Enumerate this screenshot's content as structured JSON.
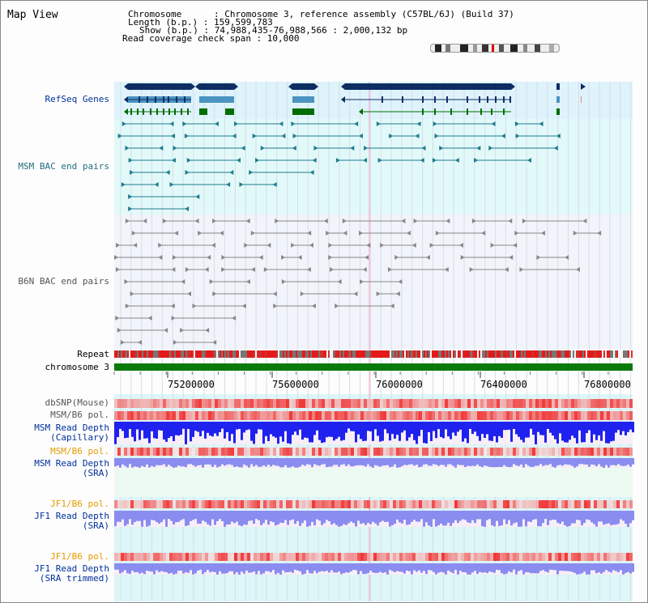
{
  "header": {
    "title": "Map View",
    "info_lines": [
      "Chromosome      : Chromosome 3, reference assembly (C57BL/6J) (Build 37)",
      "Length (b.p.) : 159,599,783",
      "Show (b.p.) : 74,988,435-76,988,566 : 2,000,132 bp",
      "Read coverage check span : 10,000"
    ]
  },
  "tracks": {
    "refseq": "RefSeq Genes",
    "msm_bac": "MSM BAC end pairs",
    "b6n_bac": "B6N BAC end pairs",
    "repeat": "Repeat",
    "chromosome": "chromosome 3",
    "dbsnp": "dbSNP(Mouse)",
    "msm_b6_pol": "MSM/B6 pol.",
    "msm_read_depth_cap": "MSM Read Depth\n(Capillary)",
    "msm_b6_pol_2": "MSM/B6 pol.",
    "msm_read_depth_sra": "MSM Read Depth\n(SRA)",
    "jf1_b6_pol": "JF1/B6 pol.",
    "jf1_read_depth_sra": "JF1 Read Depth\n(SRA)",
    "jf1_b6_pol_2": "JF1/B6 pol.",
    "jf1_read_depth_trim": "JF1 Read Depth\n(SRA trimmed)"
  },
  "axis": {
    "ticks": [
      "75200000",
      "75600000",
      "76000000",
      "76400000",
      "76800000"
    ]
  },
  "colors": {
    "refseq_bg": "#def3fb",
    "msm_bg": "#e2f9f9",
    "b6n_bg": "#f1f4fa",
    "gene_dark": "#0d2d63",
    "gene_mid": "#4b93c1",
    "gene_green": "#006d00",
    "bac_teal": "#1f7b8f",
    "chrom_green": "#0a7a0a",
    "depth_blue": "#1f22ee",
    "depth_lavender": "#8a8cf0",
    "pol_red": "#e02020",
    "label_blue": "#00309a",
    "label_orange": "#e59a00",
    "label_gray": "#555555"
  }
}
